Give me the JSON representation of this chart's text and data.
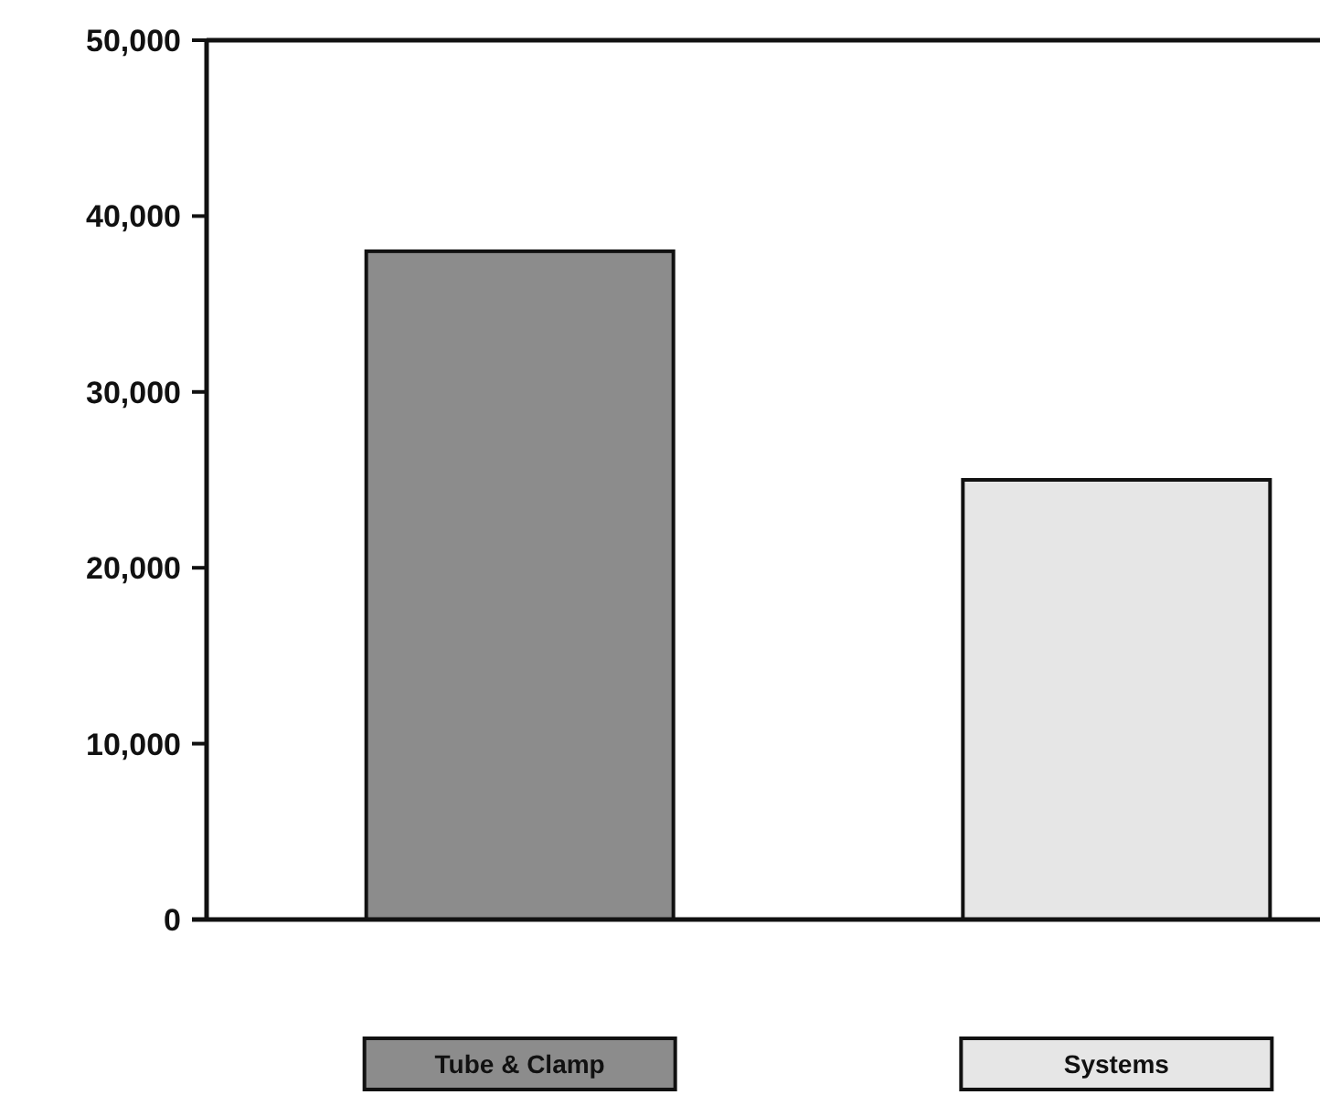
{
  "chart_data": {
    "type": "bar",
    "categories": [
      "Tube & Clamp",
      "Systems"
    ],
    "values": [
      38000,
      25000
    ],
    "colors": [
      "#8c8c8c",
      "#e6e6e6"
    ],
    "ylim": [
      0,
      50000
    ],
    "yticks": [
      {
        "value": 0,
        "label": "0"
      },
      {
        "value": 10000,
        "label": "10,000"
      },
      {
        "value": 20000,
        "label": "20,000"
      },
      {
        "value": 30000,
        "label": "30,000"
      },
      {
        "value": 40000,
        "label": "40,000"
      },
      {
        "value": 50000,
        "label": "50,000"
      }
    ],
    "grid": false
  }
}
